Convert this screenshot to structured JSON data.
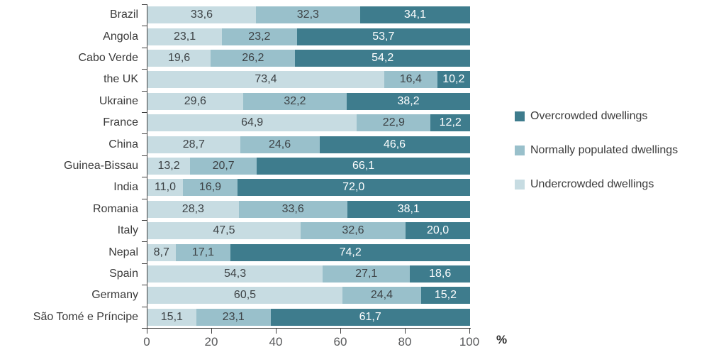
{
  "chart_data": {
    "type": "bar",
    "orientation": "horizontal",
    "stacked": true,
    "title": "",
    "xlabel": "%",
    "ylabel": "",
    "xlim": [
      0,
      100
    ],
    "x_ticks": [
      0,
      20,
      40,
      60,
      80,
      100
    ],
    "decimal_separator": ",",
    "grid": false,
    "legend_position": "right",
    "categories": [
      "Brazil",
      "Angola",
      "Cabo Verde",
      "the UK",
      "Ukraine",
      "France",
      "China",
      "Guinea-Bissau",
      "India",
      "Romania",
      "Italy",
      "Nepal",
      "Spain",
      "Germany",
      "São Tomé e Príncipe"
    ],
    "series": [
      {
        "key": "undercrowded",
        "name": "Undercrowded dwellings",
        "color": "#c7dce2",
        "label_color": "#3d4245",
        "values": [
          33.6,
          23.1,
          19.6,
          73.4,
          29.6,
          64.9,
          28.7,
          13.2,
          11.0,
          28.3,
          47.5,
          8.7,
          54.3,
          60.5,
          15.1
        ]
      },
      {
        "key": "normally-populated",
        "name": "Normally populated dwellings",
        "color": "#99c0cb",
        "label_color": "#3d4245",
        "values": [
          32.3,
          23.2,
          26.2,
          16.4,
          32.2,
          22.9,
          24.6,
          20.7,
          16.9,
          33.6,
          32.6,
          17.1,
          27.1,
          24.4,
          23.1
        ]
      },
      {
        "key": "overcrowded",
        "name": "Overcrowded dwellings",
        "color": "#3e7c8d",
        "label_color": "#ffffff",
        "values": [
          34.1,
          53.7,
          54.2,
          10.2,
          38.2,
          12.2,
          46.6,
          66.1,
          72.0,
          38.1,
          20.0,
          74.2,
          18.6,
          15.2,
          61.7
        ]
      }
    ]
  },
  "legend": {
    "items": [
      {
        "key": "overcrowded",
        "label": "Overcrowded dwellings",
        "color": "#3e7c8d"
      },
      {
        "key": "normally-populated",
        "label": "Normally populated dwellings",
        "color": "#99c0cb"
      },
      {
        "key": "undercrowded",
        "label": "Undercrowded dwellings",
        "color": "#c7dce2"
      }
    ]
  },
  "axis": {
    "color": "#404040",
    "tick_label_color": "#58595b"
  }
}
